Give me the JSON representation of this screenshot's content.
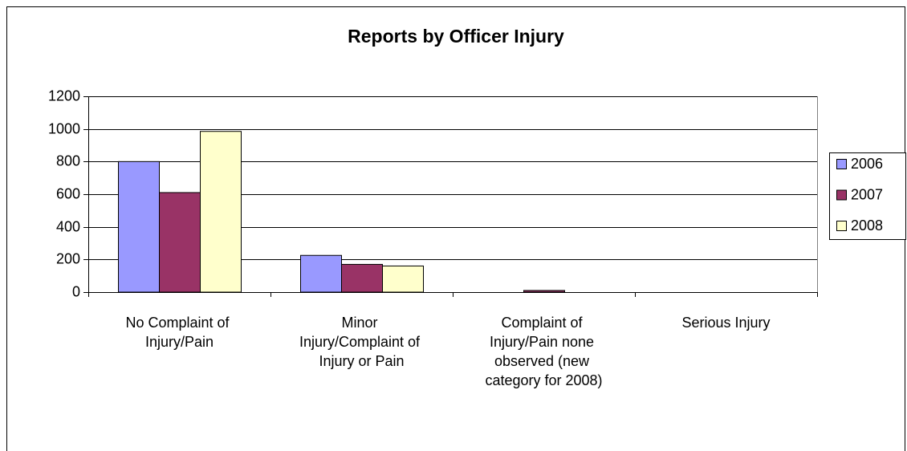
{
  "chart_data": {
    "type": "bar",
    "title": "Reports by Officer Injury",
    "categories": [
      "No Complaint of Injury/Pain",
      "Minor Injury/Complaint of Injury or Pain",
      "Complaint of Injury/Pain none observed (new category for 2008)",
      "Serious Injury"
    ],
    "series": [
      {
        "name": "2006",
        "color": "#9999ff",
        "values": [
          800,
          225,
          0,
          0
        ]
      },
      {
        "name": "2007",
        "color": "#993366",
        "values": [
          610,
          170,
          10,
          0
        ]
      },
      {
        "name": "2008",
        "color": "#ffffcc",
        "values": [
          985,
          160,
          0,
          0
        ]
      }
    ],
    "ylim": [
      0,
      1200
    ],
    "yticks": [
      0,
      200,
      400,
      600,
      800,
      1000,
      1200
    ],
    "grid": true,
    "legend": "right"
  }
}
